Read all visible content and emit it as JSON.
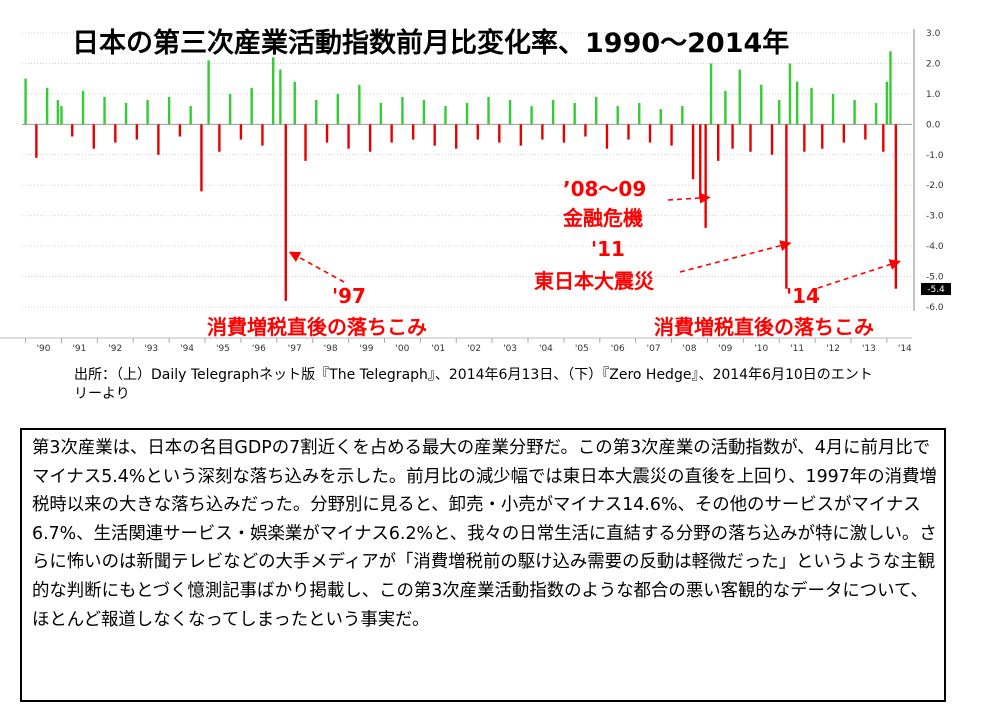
{
  "chart_data": {
    "type": "bar",
    "title": "日本の第三次産業活動指数前月比変化率、1990〜2014年",
    "ylim": [
      -6.0,
      3.0
    ],
    "yticks": [
      "3.0",
      "2.0",
      "1.0",
      "0.0",
      "-1.0",
      "-2.0",
      "-3.0",
      "-4.0",
      "-5.0",
      "-6.0"
    ],
    "last_value_label": "-5.4",
    "xtick_labels": [
      "'90",
      "'91",
      "'92",
      "'93",
      "'94",
      "'95",
      "'96",
      "'97",
      "'98",
      "'99",
      "'00",
      "'01",
      "'02",
      "'03",
      "'04",
      "'05",
      "'06",
      "'07",
      "'08",
      "'09",
      "'10",
      "'11",
      "'12",
      "'13",
      "'14"
    ],
    "bars": [
      {
        "x": 1990.0,
        "v": 1.5
      },
      {
        "x": 1990.3,
        "v": -1.1
      },
      {
        "x": 1990.6,
        "v": 1.2
      },
      {
        "x": 1990.9,
        "v": 0.8
      },
      {
        "x": 1991.0,
        "v": 0.6
      },
      {
        "x": 1991.3,
        "v": -0.4
      },
      {
        "x": 1991.6,
        "v": 1.1
      },
      {
        "x": 1991.9,
        "v": -0.8
      },
      {
        "x": 1992.2,
        "v": 0.9
      },
      {
        "x": 1992.5,
        "v": -0.6
      },
      {
        "x": 1992.8,
        "v": 0.7
      },
      {
        "x": 1993.1,
        "v": -0.5
      },
      {
        "x": 1993.4,
        "v": 0.8
      },
      {
        "x": 1993.7,
        "v": -1.0
      },
      {
        "x": 1994.0,
        "v": 0.9
      },
      {
        "x": 1994.3,
        "v": -0.4
      },
      {
        "x": 1994.6,
        "v": 0.6
      },
      {
        "x": 1994.9,
        "v": -2.2
      },
      {
        "x": 1995.1,
        "v": 2.1
      },
      {
        "x": 1995.4,
        "v": -0.9
      },
      {
        "x": 1995.7,
        "v": 1.0
      },
      {
        "x": 1996.0,
        "v": -0.5
      },
      {
        "x": 1996.3,
        "v": 1.2
      },
      {
        "x": 1996.6,
        "v": -0.7
      },
      {
        "x": 1996.9,
        "v": 2.2
      },
      {
        "x": 1997.1,
        "v": 1.8
      },
      {
        "x": 1997.25,
        "v": -5.8
      },
      {
        "x": 1997.5,
        "v": 1.4
      },
      {
        "x": 1997.8,
        "v": -1.2
      },
      {
        "x": 1998.1,
        "v": 0.8
      },
      {
        "x": 1998.4,
        "v": -0.6
      },
      {
        "x": 1998.7,
        "v": 1.0
      },
      {
        "x": 1999.0,
        "v": -0.8
      },
      {
        "x": 1999.3,
        "v": 1.3
      },
      {
        "x": 1999.6,
        "v": -0.9
      },
      {
        "x": 1999.9,
        "v": 0.7
      },
      {
        "x": 2000.2,
        "v": -0.6
      },
      {
        "x": 2000.5,
        "v": 0.9
      },
      {
        "x": 2000.8,
        "v": -0.5
      },
      {
        "x": 2001.1,
        "v": 0.8
      },
      {
        "x": 2001.4,
        "v": -0.7
      },
      {
        "x": 2001.7,
        "v": 0.6
      },
      {
        "x": 2002.0,
        "v": -0.8
      },
      {
        "x": 2002.3,
        "v": 0.7
      },
      {
        "x": 2002.6,
        "v": -0.5
      },
      {
        "x": 2002.9,
        "v": 0.9
      },
      {
        "x": 2003.2,
        "v": -0.6
      },
      {
        "x": 2003.5,
        "v": 0.8
      },
      {
        "x": 2003.8,
        "v": -0.7
      },
      {
        "x": 2004.1,
        "v": 0.6
      },
      {
        "x": 2004.4,
        "v": -0.5
      },
      {
        "x": 2004.7,
        "v": 0.8
      },
      {
        "x": 2005.0,
        "v": -0.6
      },
      {
        "x": 2005.3,
        "v": 0.7
      },
      {
        "x": 2005.6,
        "v": -0.4
      },
      {
        "x": 2005.9,
        "v": 0.9
      },
      {
        "x": 2006.2,
        "v": -0.8
      },
      {
        "x": 2006.5,
        "v": 0.6
      },
      {
        "x": 2006.8,
        "v": -0.5
      },
      {
        "x": 2007.1,
        "v": 0.7
      },
      {
        "x": 2007.4,
        "v": -0.6
      },
      {
        "x": 2007.7,
        "v": 0.5
      },
      {
        "x": 2008.0,
        "v": -0.7
      },
      {
        "x": 2008.3,
        "v": 0.6
      },
      {
        "x": 2008.6,
        "v": -1.8
      },
      {
        "x": 2008.8,
        "v": -2.4
      },
      {
        "x": 2008.95,
        "v": -3.4
      },
      {
        "x": 2009.1,
        "v": 2.0
      },
      {
        "x": 2009.3,
        "v": -1.2
      },
      {
        "x": 2009.5,
        "v": 1.1
      },
      {
        "x": 2009.7,
        "v": -0.8
      },
      {
        "x": 2009.9,
        "v": 1.8
      },
      {
        "x": 2010.2,
        "v": -0.9
      },
      {
        "x": 2010.5,
        "v": 1.3
      },
      {
        "x": 2010.8,
        "v": -1.0
      },
      {
        "x": 2011.0,
        "v": 0.8
      },
      {
        "x": 2011.2,
        "v": -5.4
      },
      {
        "x": 2011.3,
        "v": 2.0
      },
      {
        "x": 2011.5,
        "v": 1.4
      },
      {
        "x": 2011.7,
        "v": -0.9
      },
      {
        "x": 2011.9,
        "v": 1.2
      },
      {
        "x": 2012.2,
        "v": -0.8
      },
      {
        "x": 2012.5,
        "v": 1.0
      },
      {
        "x": 2012.8,
        "v": -0.6
      },
      {
        "x": 2013.1,
        "v": 0.8
      },
      {
        "x": 2013.4,
        "v": -0.5
      },
      {
        "x": 2013.7,
        "v": 0.7
      },
      {
        "x": 2013.9,
        "v": -0.9
      },
      {
        "x": 2014.0,
        "v": 1.4
      },
      {
        "x": 2014.1,
        "v": 2.4
      },
      {
        "x": 2014.25,
        "v": -5.4
      }
    ],
    "annotations": [
      {
        "text": "'97",
        "target": [
          1997.25,
          -4.2
        ]
      },
      {
        "text": "消費増税直後の落ちこみ"
      },
      {
        "text": "’08〜09"
      },
      {
        "text": "金融危機",
        "target": [
          2008.95,
          -2.4
        ]
      },
      {
        "text": "'11",
        "target": [
          2011.2,
          -3.9
        ]
      },
      {
        "text": "東日本大震災"
      },
      {
        "text": "'14",
        "target": [
          2014.25,
          -4.5
        ]
      },
      {
        "text": "消費増税直後の落ちこみ"
      }
    ],
    "colors": {
      "positive": "#33cc33",
      "negative": "#e60000",
      "annotation": "#ff0000",
      "badge": "#000000"
    }
  },
  "source_text": "出所：（上）Daily Telegraphネット版『The Telegraph』、2014年6月13日、（下）『Zero Hedge』、2014年6月10日のエントリーより",
  "body_text": "第3次産業は、日本の名目GDPの7割近くを占める最大の産業分野だ。この第3次産業の活動指数が、4月に前月比でマイナス5.4%という深刻な落ち込みを示した。前月比の減少幅では東日本大震災の直後を上回り、1997年の消費増税時以来の大きな落ち込みだった。分野別に見ると、卸売・小売がマイナス14.6%、その他のサービスがマイナス6.7%、生活関連サービス・娯楽業がマイナス6.2%と、我々の日常生活に直結する分野の落ち込みが特に激しい。さらに怖いのは新聞テレビなどの大手メディアが「消費増税前の駆け込み需要の反動は軽微だった」というような主観的な判断にもとづく憶測記事ばかり掲載し、この第3次産業活動指数のような都合の悪い客観的なデータについて、ほとんど報道しなくなってしまったという事実だ。"
}
